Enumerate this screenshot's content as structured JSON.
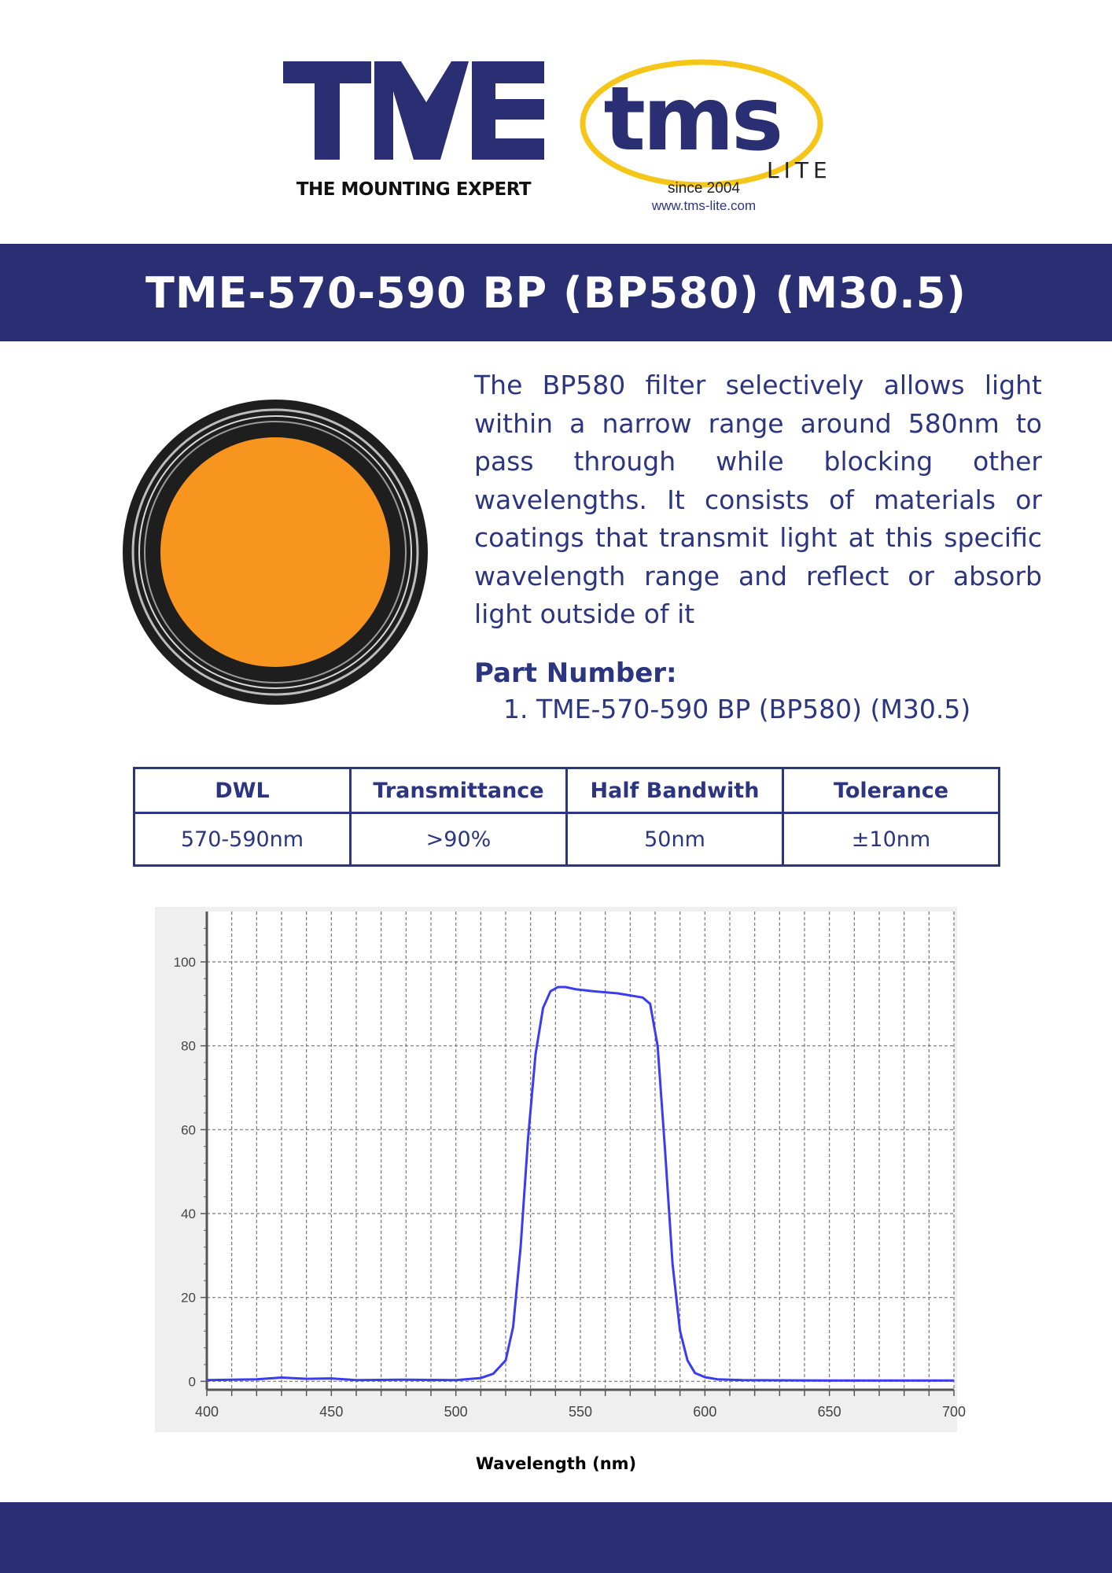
{
  "header": {
    "tme_logo_caption": "THE MOUNTING EXPERT",
    "tms_logo_text": "tms",
    "tms_logo_sub": "LITE",
    "tms_since": "since 2004",
    "tms_url": "www.tms-lite.com"
  },
  "title": "TME-570-590 BP (BP580) (M30.5)",
  "description": "The BP580 filter selectively allows light within a narrow range around 580nm to pass through while blocking other wavelengths. It consists of materials or coatings that transmit light at this specific wavelength range and reflect or absorb light outside of it",
  "part_number": {
    "heading": "Part Number:",
    "items": [
      "1. TME-570-590 BP (BP580) (M30.5)"
    ]
  },
  "spec_table": {
    "headers": [
      "DWL",
      "Transmittance",
      "Half Bandwith",
      "Tolerance"
    ],
    "row": [
      "570-590nm",
      ">90%",
      "50nm",
      "±10nm"
    ]
  },
  "colors": {
    "brand_navy": "#2a2f74",
    "text_navy": "#2b3580",
    "logo_yellow": "#f5c518",
    "filter_orange": "#f7951f",
    "curve_blue": "#3b3bf2"
  },
  "chart_data": {
    "type": "line",
    "title": "",
    "xlabel": "Wavelength (nm)",
    "ylabel": "",
    "xlim": [
      400,
      700
    ],
    "ylim": [
      -2,
      112
    ],
    "x_ticks": [
      400,
      450,
      500,
      550,
      600,
      650,
      700
    ],
    "y_ticks": [
      0,
      20,
      40,
      60,
      80,
      100
    ],
    "grid": true,
    "series": [
      {
        "color": "#3b3bf2",
        "x": [
          400,
          420,
          430,
          440,
          450,
          460,
          480,
          500,
          510,
          515,
          520,
          523,
          526,
          529,
          532,
          535,
          538,
          541,
          544,
          548,
          555,
          565,
          575,
          578,
          581,
          584,
          587,
          590,
          593,
          596,
          600,
          605,
          615,
          650,
          700
        ],
        "y": [
          0.3,
          0.5,
          0.9,
          0.6,
          0.7,
          0.3,
          0.4,
          0.3,
          0.8,
          1.8,
          5,
          13,
          32,
          58,
          78,
          89,
          93,
          94,
          94,
          93.5,
          93,
          92.5,
          91.5,
          90,
          80,
          55,
          28,
          12,
          5,
          2,
          1,
          0.5,
          0.3,
          0.2,
          0.2
        ]
      }
    ]
  }
}
